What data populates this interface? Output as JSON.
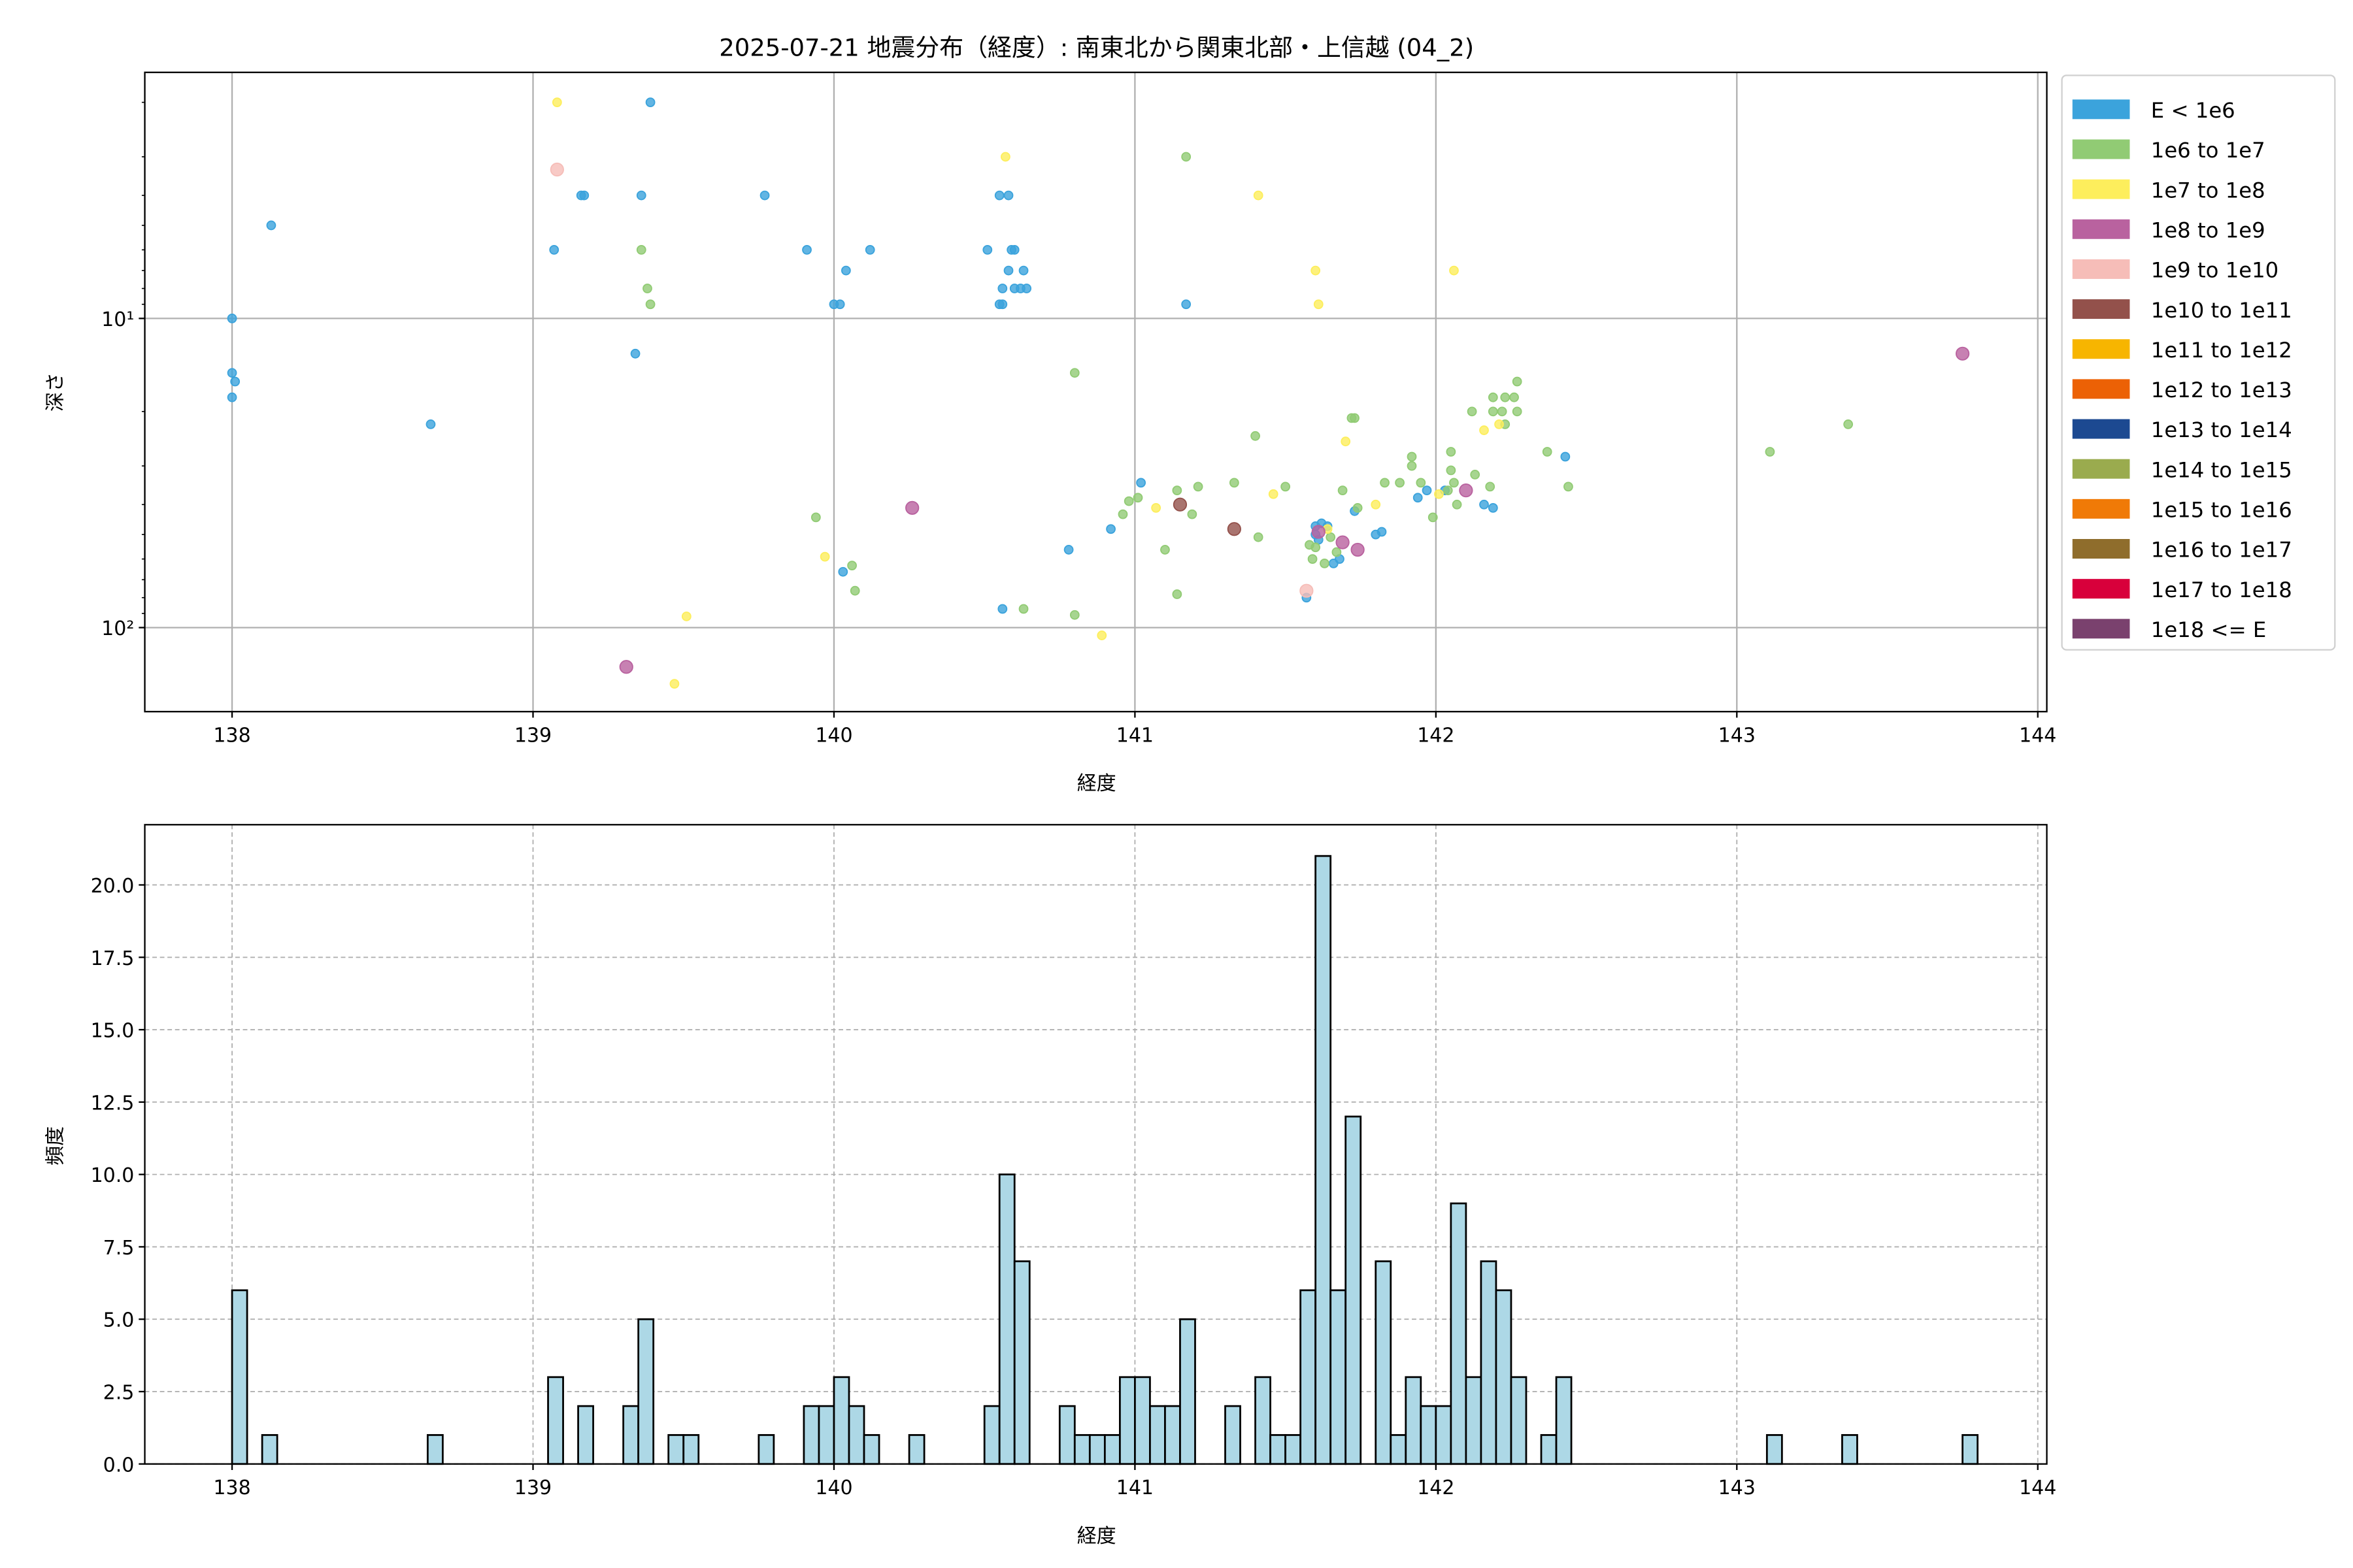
{
  "chart_data": [
    {
      "type": "scatter",
      "title": "2025-07-21 地震分布（経度）: 南東北から関東北部・上信越 (04_2)",
      "xlabel": "経度",
      "ylabel": "深さ",
      "xlim": [
        137.71,
        144.03
      ],
      "ylim": [
        187,
        1.6
      ],
      "y_scale": "log",
      "y_inverted": true,
      "xticks": [
        "138",
        "139",
        "140",
        "141",
        "142",
        "143",
        "144"
      ],
      "yticks": [
        {
          "value": 10,
          "label": "10¹"
        },
        {
          "value": 100,
          "label": "10²"
        }
      ],
      "grid": true,
      "legend_placement": "outside-right",
      "series": [
        {
          "name": "E < 1e6",
          "color": "#3ba3dc",
          "points": [
            [
              138.0,
              10
            ],
            [
              138.0,
              15
            ],
            [
              138.01,
              16
            ],
            [
              138.0,
              18
            ],
            [
              138.13,
              5.0
            ],
            [
              138.66,
              22
            ],
            [
              139.39,
              2.0
            ],
            [
              139.16,
              4.0
            ],
            [
              139.17,
              4.0
            ],
            [
              139.36,
              4.0
            ],
            [
              139.07,
              6.0
            ],
            [
              139.34,
              13
            ],
            [
              139.77,
              4.0
            ],
            [
              139.91,
              6.0
            ],
            [
              140.12,
              6.0
            ],
            [
              140.04,
              7.0
            ],
            [
              140.0,
              9.0
            ],
            [
              140.02,
              9.0
            ],
            [
              140.03,
              66
            ],
            [
              140.55,
              4.0
            ],
            [
              140.58,
              4.0
            ],
            [
              140.51,
              6.0
            ],
            [
              140.59,
              6.0
            ],
            [
              140.6,
              6.0
            ],
            [
              140.58,
              7.0
            ],
            [
              140.63,
              7.0
            ],
            [
              140.56,
              8.0
            ],
            [
              140.6,
              8.0
            ],
            [
              140.62,
              8.0
            ],
            [
              140.64,
              8.0
            ],
            [
              140.55,
              9.0
            ],
            [
              140.56,
              9.0
            ],
            [
              140.56,
              87
            ],
            [
              141.17,
              9.0
            ],
            [
              141.02,
              34
            ],
            [
              140.78,
              56
            ],
            [
              140.92,
              48
            ],
            [
              141.57,
              80
            ],
            [
              141.6,
              47
            ],
            [
              141.62,
              46
            ],
            [
              141.64,
              47
            ],
            [
              141.6,
              50
            ],
            [
              141.61,
              52
            ],
            [
              141.68,
              60
            ],
            [
              141.66,
              62
            ],
            [
              141.73,
              42
            ],
            [
              141.8,
              50
            ],
            [
              141.82,
              49
            ],
            [
              141.94,
              38
            ],
            [
              141.97,
              36
            ],
            [
              142.03,
              36
            ],
            [
              142.16,
              40
            ],
            [
              142.19,
              41
            ],
            [
              142.43,
              28
            ]
          ]
        },
        {
          "name": "1e6 to 1e7",
          "color": "#91cb74",
          "points": [
            [
              139.36,
              6.0
            ],
            [
              139.38,
              8.0
            ],
            [
              139.39,
              9.0
            ],
            [
              139.94,
              44
            ],
            [
              140.06,
              63
            ],
            [
              140.07,
              76
            ],
            [
              140.63,
              87
            ],
            [
              140.8,
              91
            ],
            [
              140.8,
              15
            ],
            [
              141.17,
              3.0
            ],
            [
              140.96,
              43
            ],
            [
              140.98,
              39
            ],
            [
              141.01,
              38
            ],
            [
              141.14,
              36
            ],
            [
              141.1,
              56
            ],
            [
              141.14,
              78
            ],
            [
              141.19,
              43
            ],
            [
              141.21,
              35
            ],
            [
              141.33,
              34
            ],
            [
              141.41,
              51
            ],
            [
              141.5,
              35
            ],
            [
              141.4,
              24
            ],
            [
              141.73,
              21
            ],
            [
              141.69,
              36
            ],
            [
              141.74,
              41
            ],
            [
              141.83,
              34
            ],
            [
              141.88,
              34
            ],
            [
              141.92,
              28
            ],
            [
              141.92,
              30
            ],
            [
              141.95,
              34
            ],
            [
              141.99,
              44
            ],
            [
              142.05,
              27
            ],
            [
              142.05,
              31
            ],
            [
              142.06,
              34
            ],
            [
              142.07,
              40
            ],
            [
              142.04,
              36
            ],
            [
              142.13,
              32
            ],
            [
              142.12,
              20
            ],
            [
              142.19,
              20
            ],
            [
              142.19,
              18
            ],
            [
              142.22,
              20
            ],
            [
              142.23,
              22
            ],
            [
              142.27,
              16
            ],
            [
              142.26,
              18
            ],
            [
              142.23,
              18
            ],
            [
              142.27,
              20
            ],
            [
              142.37,
              27
            ],
            [
              142.44,
              35
            ],
            [
              143.11,
              27
            ],
            [
              143.37,
              22
            ],
            [
              141.6,
              55
            ],
            [
              141.59,
              60
            ],
            [
              141.63,
              62
            ],
            [
              141.67,
              57
            ],
            [
              141.72,
              21
            ],
            [
              142.18,
              35
            ],
            [
              141.58,
              54
            ],
            [
              141.65,
              51
            ]
          ]
        },
        {
          "name": "1e7 to 1e8",
          "color": "#fdee5c",
          "points": [
            [
              139.08,
              2.0
            ],
            [
              140.57,
              3.0
            ],
            [
              141.41,
              4.0
            ],
            [
              141.6,
              7.0
            ],
            [
              141.61,
              9.0
            ],
            [
              142.06,
              7.0
            ],
            [
              139.51,
              92
            ],
            [
              139.47,
              152
            ],
            [
              139.97,
              59
            ],
            [
              140.89,
              106
            ],
            [
              141.07,
              41
            ],
            [
              141.46,
              37
            ],
            [
              141.7,
              25
            ],
            [
              141.8,
              40
            ],
            [
              142.01,
              37
            ],
            [
              142.16,
              23
            ],
            [
              141.64,
              48
            ],
            [
              142.21,
              22
            ]
          ]
        },
        {
          "name": "1e8 to 1e9",
          "color": "#b9629f",
          "points": [
            [
              139.31,
              134
            ],
            [
              140.26,
              41
            ],
            [
              143.75,
              13
            ],
            [
              142.1,
              36
            ],
            [
              141.69,
              53
            ],
            [
              141.74,
              56
            ],
            [
              141.61,
              49
            ]
          ]
        },
        {
          "name": "1e9 to 1e10",
          "color": "#f6bdb8",
          "points": [
            [
              139.08,
              3.3
            ],
            [
              141.57,
              76
            ]
          ]
        },
        {
          "name": "1e10 to 1e11",
          "color": "#93514b",
          "points": [
            [
              141.15,
              40
            ],
            [
              141.33,
              48
            ]
          ]
        },
        {
          "name": "1e11 to 1e12",
          "color": "#f7b500",
          "points": []
        },
        {
          "name": "1e12 to 1e13",
          "color": "#ec6105",
          "points": []
        },
        {
          "name": "1e13 to 1e14",
          "color": "#1c4991",
          "points": []
        },
        {
          "name": "1e14 to 1e15",
          "color": "#9aab4e",
          "points": []
        },
        {
          "name": "1e15 to 1e16",
          "color": "#f07a07",
          "points": []
        },
        {
          "name": "1e16 to 1e17",
          "color": "#8f6d2c",
          "points": []
        },
        {
          "name": "1e17 to 1e18",
          "color": "#d8003b",
          "points": []
        },
        {
          "name": "1e18 <= E",
          "color": "#7a416e",
          "points": []
        }
      ]
    },
    {
      "type": "bar",
      "subtype": "histogram",
      "xlabel": "経度",
      "ylabel": "頻度",
      "xlim": [
        137.71,
        144.03
      ],
      "ylim": [
        0,
        22.08
      ],
      "xticks": [
        "138",
        "139",
        "140",
        "141",
        "142",
        "143",
        "144"
      ],
      "yticks": [
        "0.0",
        "2.5",
        "5.0",
        "7.5",
        "10.0",
        "12.5",
        "15.0",
        "17.5",
        "20.0"
      ],
      "grid": true,
      "bar_color": "#add8e6",
      "edge_color": "#000000",
      "bin_width": 0.05,
      "bins": [
        [
          138.0,
          6
        ],
        [
          138.1,
          1
        ],
        [
          138.65,
          1
        ],
        [
          139.05,
          3
        ],
        [
          139.15,
          2
        ],
        [
          139.3,
          2
        ],
        [
          139.35,
          5
        ],
        [
          139.45,
          1
        ],
        [
          139.5,
          1
        ],
        [
          139.75,
          1
        ],
        [
          139.9,
          2
        ],
        [
          139.95,
          2
        ],
        [
          140.0,
          3
        ],
        [
          140.05,
          2
        ],
        [
          140.1,
          1
        ],
        [
          140.25,
          1
        ],
        [
          140.5,
          2
        ],
        [
          140.55,
          10
        ],
        [
          140.6,
          7
        ],
        [
          140.75,
          2
        ],
        [
          140.8,
          1
        ],
        [
          140.85,
          1
        ],
        [
          140.9,
          1
        ],
        [
          140.95,
          3
        ],
        [
          141.0,
          3
        ],
        [
          141.05,
          2
        ],
        [
          141.1,
          2
        ],
        [
          141.15,
          5
        ],
        [
          141.3,
          2
        ],
        [
          141.4,
          3
        ],
        [
          141.45,
          1
        ],
        [
          141.5,
          1
        ],
        [
          141.55,
          6
        ],
        [
          141.6,
          21
        ],
        [
          141.65,
          6
        ],
        [
          141.7,
          12
        ],
        [
          141.8,
          7
        ],
        [
          141.85,
          1
        ],
        [
          141.9,
          3
        ],
        [
          141.95,
          2
        ],
        [
          142.0,
          2
        ],
        [
          142.05,
          9
        ],
        [
          142.1,
          3
        ],
        [
          142.15,
          7
        ],
        [
          142.2,
          6
        ],
        [
          142.25,
          3
        ],
        [
          142.35,
          1
        ],
        [
          142.4,
          3
        ],
        [
          143.1,
          1
        ],
        [
          143.35,
          1
        ],
        [
          143.75,
          1
        ]
      ]
    }
  ]
}
